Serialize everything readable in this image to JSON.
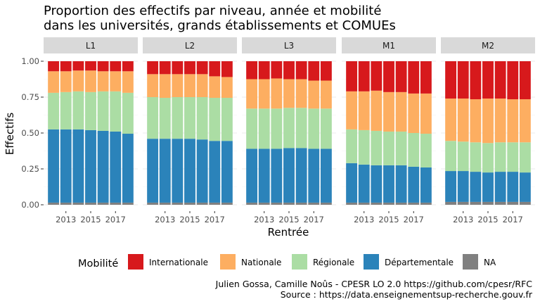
{
  "chart_data": {
    "type": "bar",
    "stacked": true,
    "title_line1": "Proportion des effectifs par niveau, année et mobilité",
    "title_line2": "dans les universités, grands établissements et COMUEs",
    "xlabel": "Rentrée",
    "ylabel": "Effectifs",
    "ylim": [
      0,
      1
    ],
    "y_ticks": [
      "0.00",
      "0.25",
      "0.50",
      "0.75",
      "1.00"
    ],
    "x_tick_labels": [
      "2013",
      "2015",
      "2017"
    ],
    "years": [
      2012,
      2013,
      2014,
      2015,
      2016,
      2017,
      2018
    ],
    "legend_title": "Mobilité",
    "legend_position": "bottom",
    "series_order": [
      "NA",
      "Départementale",
      "Régionale",
      "Nationale",
      "Internationale"
    ],
    "colors": {
      "Internationale": "#d7191c",
      "Nationale": "#fdae61",
      "Régionale": "#abdda4",
      "Départementale": "#2b83ba",
      "NA": "#808080"
    },
    "legend_entries": [
      "Internationale",
      "Nationale",
      "Régionale",
      "Départementale",
      "NA"
    ],
    "panels": [
      {
        "label": "L1",
        "series": {
          "NA": [
            0.015,
            0.015,
            0.015,
            0.015,
            0.015,
            0.015,
            0.015
          ],
          "Départementale": [
            0.51,
            0.51,
            0.51,
            0.505,
            0.5,
            0.495,
            0.48
          ],
          "Régionale": [
            0.255,
            0.26,
            0.265,
            0.265,
            0.275,
            0.28,
            0.285
          ],
          "Nationale": [
            0.15,
            0.145,
            0.145,
            0.15,
            0.14,
            0.14,
            0.15
          ],
          "Internationale": [
            0.07,
            0.07,
            0.065,
            0.065,
            0.07,
            0.07,
            0.07
          ]
        }
      },
      {
        "label": "L2",
        "series": {
          "NA": [
            0.015,
            0.015,
            0.015,
            0.015,
            0.015,
            0.015,
            0.015
          ],
          "Départementale": [
            0.445,
            0.445,
            0.445,
            0.445,
            0.44,
            0.43,
            0.43
          ],
          "Régionale": [
            0.29,
            0.285,
            0.29,
            0.29,
            0.295,
            0.3,
            0.3
          ],
          "Nationale": [
            0.16,
            0.165,
            0.16,
            0.16,
            0.16,
            0.15,
            0.145
          ],
          "Internationale": [
            0.09,
            0.09,
            0.09,
            0.09,
            0.09,
            0.105,
            0.11
          ]
        }
      },
      {
        "label": "L3",
        "series": {
          "NA": [
            0.015,
            0.015,
            0.015,
            0.015,
            0.015,
            0.015,
            0.015
          ],
          "Départementale": [
            0.375,
            0.375,
            0.375,
            0.38,
            0.38,
            0.375,
            0.375
          ],
          "Régionale": [
            0.28,
            0.28,
            0.28,
            0.28,
            0.28,
            0.28,
            0.28
          ],
          "Nationale": [
            0.205,
            0.205,
            0.21,
            0.2,
            0.2,
            0.195,
            0.195
          ],
          "Internationale": [
            0.125,
            0.125,
            0.12,
            0.125,
            0.125,
            0.135,
            0.135
          ]
        }
      },
      {
        "label": "M1",
        "series": {
          "NA": [
            0.015,
            0.015,
            0.015,
            0.015,
            0.015,
            0.015,
            0.015
          ],
          "Départementale": [
            0.275,
            0.265,
            0.26,
            0.26,
            0.26,
            0.25,
            0.245
          ],
          "Régionale": [
            0.235,
            0.24,
            0.24,
            0.235,
            0.235,
            0.235,
            0.235
          ],
          "Nationale": [
            0.265,
            0.27,
            0.28,
            0.275,
            0.275,
            0.275,
            0.28
          ],
          "Internationale": [
            0.21,
            0.21,
            0.205,
            0.215,
            0.215,
            0.225,
            0.225
          ]
        }
      },
      {
        "label": "M2",
        "series": {
          "NA": [
            0.02,
            0.02,
            0.02,
            0.02,
            0.02,
            0.02,
            0.02
          ],
          "Départementale": [
            0.215,
            0.215,
            0.21,
            0.205,
            0.21,
            0.21,
            0.205
          ],
          "Régionale": [
            0.21,
            0.205,
            0.205,
            0.205,
            0.205,
            0.205,
            0.21
          ],
          "Nationale": [
            0.295,
            0.3,
            0.3,
            0.31,
            0.305,
            0.3,
            0.3
          ],
          "Internationale": [
            0.26,
            0.26,
            0.265,
            0.26,
            0.26,
            0.265,
            0.265
          ]
        }
      }
    ],
    "caption_line1": "Julien Gossa, Camille Noûs - CPESR LO 2.0 https://github.com/cpesr/RFC",
    "caption_line2": "Source : https://data.enseignementsup-recherche.gouv.fr"
  }
}
